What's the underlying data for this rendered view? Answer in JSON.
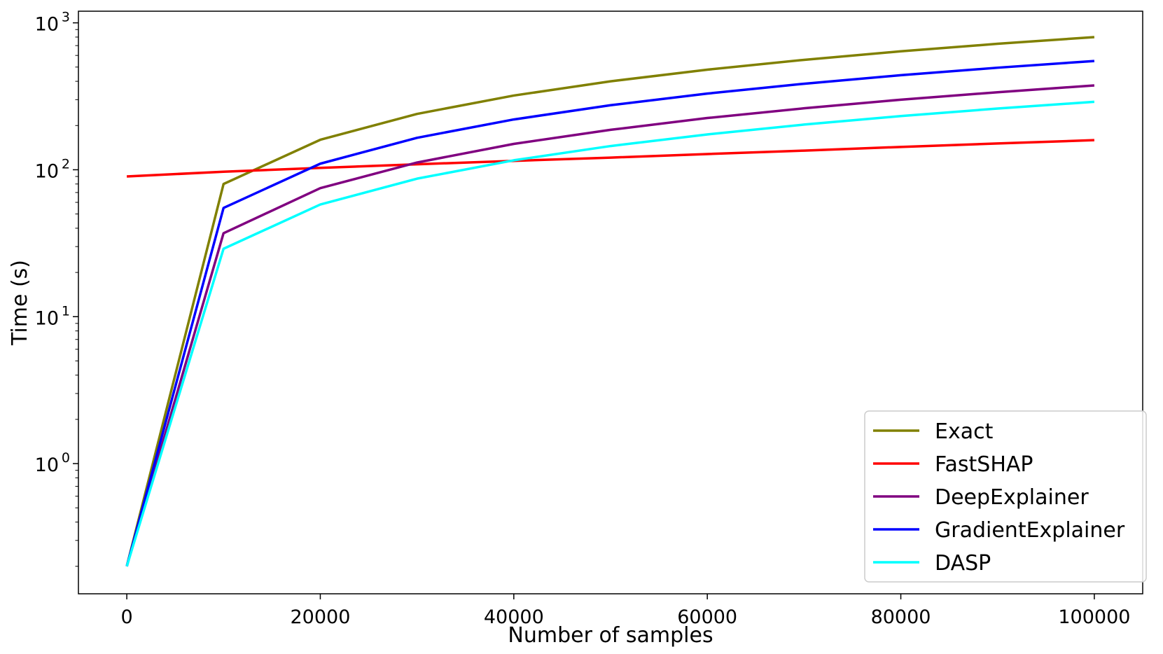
{
  "chart_data": {
    "type": "line",
    "title": "",
    "xlabel": "Number of samples",
    "ylabel": "Time (s)",
    "xlim": [
      -5000,
      105000
    ],
    "ylim": [
      0.13,
      1200
    ],
    "yscale": "log",
    "grid": false,
    "legend_position": "lower-right",
    "x": [
      0,
      10000,
      20000,
      30000,
      40000,
      50000,
      60000,
      70000,
      80000,
      90000,
      100000
    ],
    "x_ticks": [
      {
        "value": 0,
        "label": "0"
      },
      {
        "value": 20000,
        "label": "20000"
      },
      {
        "value": 40000,
        "label": "40000"
      },
      {
        "value": 60000,
        "label": "60000"
      },
      {
        "value": 80000,
        "label": "80000"
      },
      {
        "value": 100000,
        "label": "100000"
      }
    ],
    "y_ticks": [
      {
        "value": 1,
        "base": "10",
        "exp": "0"
      },
      {
        "value": 10,
        "base": "10",
        "exp": "1"
      },
      {
        "value": 100,
        "base": "10",
        "exp": "2"
      },
      {
        "value": 1000,
        "base": "10",
        "exp": "3"
      }
    ],
    "series": [
      {
        "name": "Exact",
        "color": "#808000",
        "values": [
          0.2,
          80,
          160,
          240,
          320,
          400,
          480,
          560,
          640,
          720,
          800
        ]
      },
      {
        "name": "FastSHAP",
        "color": "#ff0000",
        "values": [
          90,
          97,
          103,
          109,
          115,
          121,
          128,
          135,
          143,
          151,
          159
        ]
      },
      {
        "name": "DeepExplainer",
        "color": "#800080",
        "values": [
          0.2,
          37,
          75,
          112,
          150,
          187,
          225,
          262,
          300,
          337,
          375
        ]
      },
      {
        "name": "GradientExplainer",
        "color": "#0000ff",
        "values": [
          0.2,
          55,
          110,
          165,
          220,
          275,
          330,
          385,
          440,
          495,
          550
        ]
      },
      {
        "name": "DASP",
        "color": "#00ffff",
        "values": [
          0.2,
          29,
          58,
          87,
          116,
          145,
          174,
          203,
          232,
          261,
          290
        ]
      }
    ]
  }
}
